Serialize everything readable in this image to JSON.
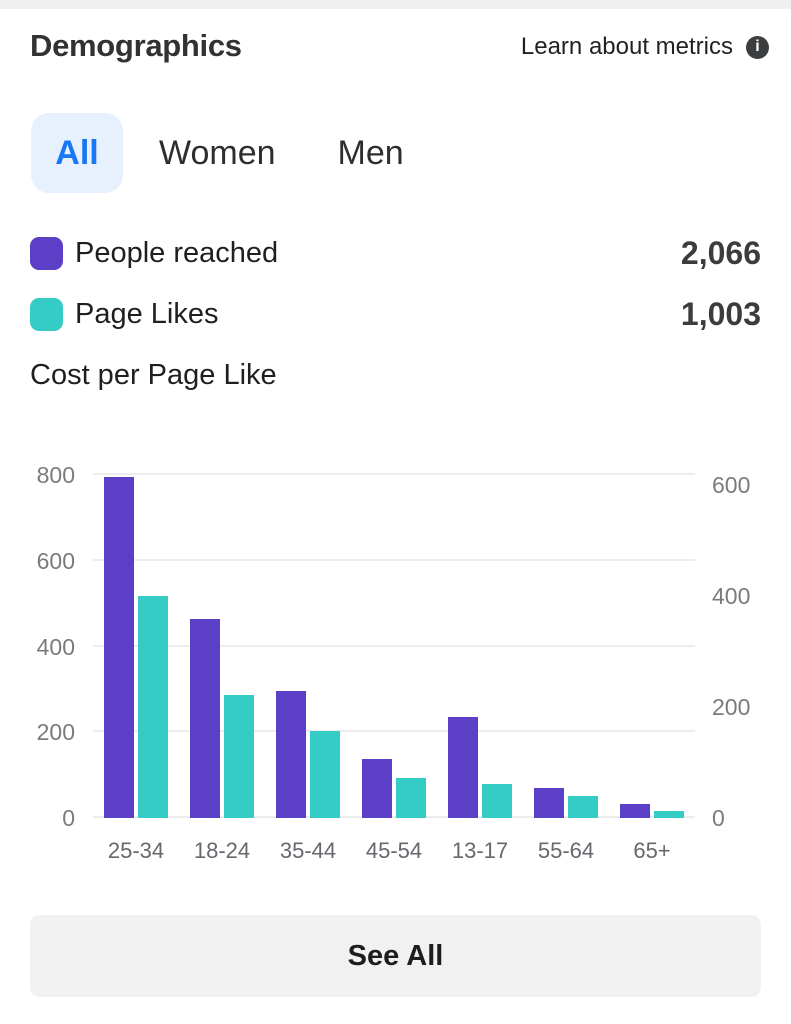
{
  "header": {
    "title": "Demographics",
    "learn_link": "Learn about metrics"
  },
  "tabs": {
    "active_color": "#1877f2",
    "active_bg": "#e7f0fd",
    "items": [
      {
        "label": "All",
        "selected": true
      },
      {
        "label": "Women",
        "selected": false
      },
      {
        "label": "Men",
        "selected": false
      }
    ]
  },
  "legend": {
    "items": [
      {
        "label": "People reached",
        "value": "2,066",
        "color": "#5b3fc7"
      },
      {
        "label": "Page Likes",
        "value": "1,003",
        "color": "#36ccc6"
      },
      {
        "label": "Cost per Page Like",
        "value": "",
        "color": ""
      }
    ]
  },
  "chart_data": {
    "type": "bar",
    "categories": [
      "25-34",
      "18-24",
      "35-44",
      "45-54",
      "13-17",
      "55-64",
      "65+"
    ],
    "series": [
      {
        "name": "People reached",
        "axis": "left",
        "color": "#5b3fc7",
        "values": [
          795,
          465,
          297,
          138,
          236,
          70,
          33
        ]
      },
      {
        "name": "Page Likes",
        "axis": "right",
        "color": "#36ccc6",
        "values": [
          400,
          222,
          157,
          73,
          61,
          40,
          12
        ]
      }
    ],
    "left_axis": {
      "ticks": [
        0,
        200,
        400,
        600,
        800
      ],
      "max": 800
    },
    "right_axis": {
      "ticks": [
        0,
        200,
        400,
        600
      ],
      "max": 600
    },
    "grid": "horizontal gridlines from left axis only",
    "legend_position": "above chart",
    "title": "",
    "xlabel": "",
    "ylabel": ""
  },
  "footer": {
    "see_all_label": "See All"
  }
}
